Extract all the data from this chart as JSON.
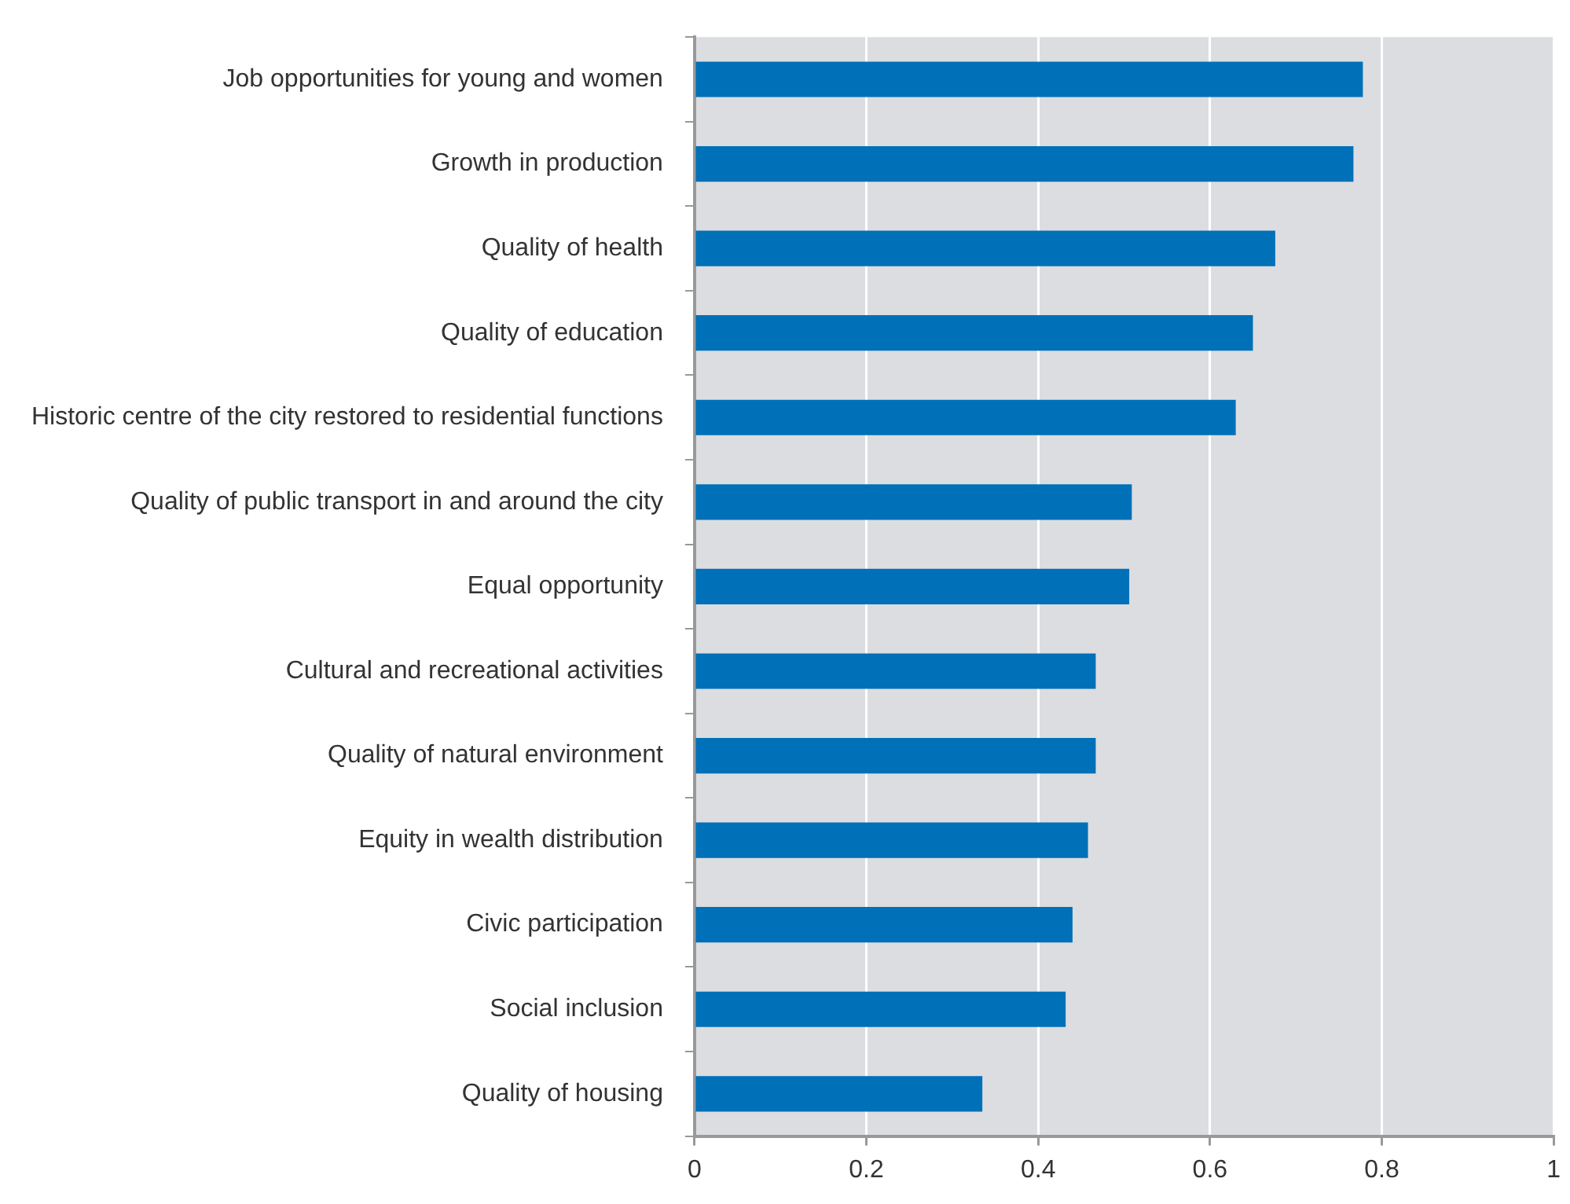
{
  "chart_data": {
    "type": "bar",
    "orientation": "horizontal",
    "categories": [
      "Job opportunities for young and women",
      "Growth in production",
      "Quality of health",
      "Quality of education",
      "Historic centre of the city restored to residential functions",
      "Quality of public transport in and around the city",
      "Equal opportunity",
      "Cultural and recreational activities",
      "Quality of natural environment",
      "Equity in wealth distribution",
      "Civic participation",
      "Social inclusion",
      "Quality of housing"
    ],
    "values": [
      0.778,
      0.767,
      0.676,
      0.65,
      0.63,
      0.509,
      0.506,
      0.467,
      0.467,
      0.458,
      0.44,
      0.432,
      0.335
    ],
    "color": "#0070b8",
    "xlim": [
      0,
      1
    ],
    "xticks": [
      0,
      0.2,
      0.4,
      0.6,
      0.8,
      1
    ],
    "grid": "x",
    "legend": false
  }
}
